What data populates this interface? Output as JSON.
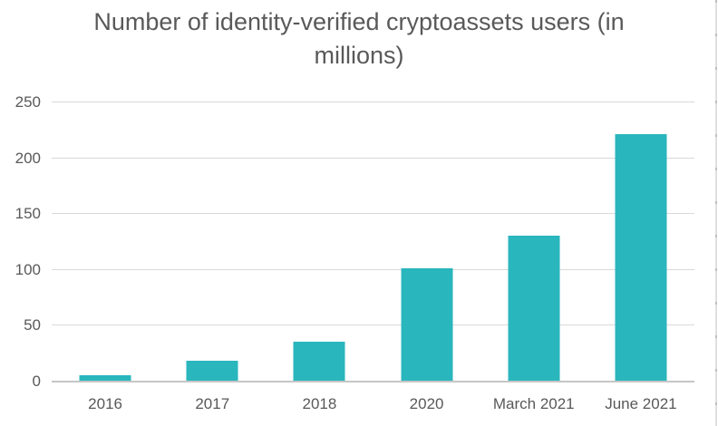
{
  "window": {
    "background": "#ffffff"
  },
  "chart_data": {
    "type": "bar",
    "title": "Number of identity-verified cryptoassets users (in millions)",
    "title_lines": [
      "Number of identity-verified cryptoassets users (in",
      "millions)"
    ],
    "categories": [
      "2016",
      "2017",
      "2018",
      "2020",
      "March 2021",
      "June 2021"
    ],
    "values": [
      5,
      18,
      35,
      101,
      130,
      221
    ],
    "xlabel": "",
    "ylabel": "",
    "ylim": [
      0,
      250
    ],
    "yticks": [
      0,
      50,
      100,
      150,
      200,
      250
    ],
    "grid": true,
    "legend": false,
    "colors": {
      "bar": "#2ab6bd",
      "gridline": "#d9d9d9",
      "axis_line": "#c6c6c6",
      "text": "#595959",
      "right_edge": "#d6d6d6"
    }
  }
}
